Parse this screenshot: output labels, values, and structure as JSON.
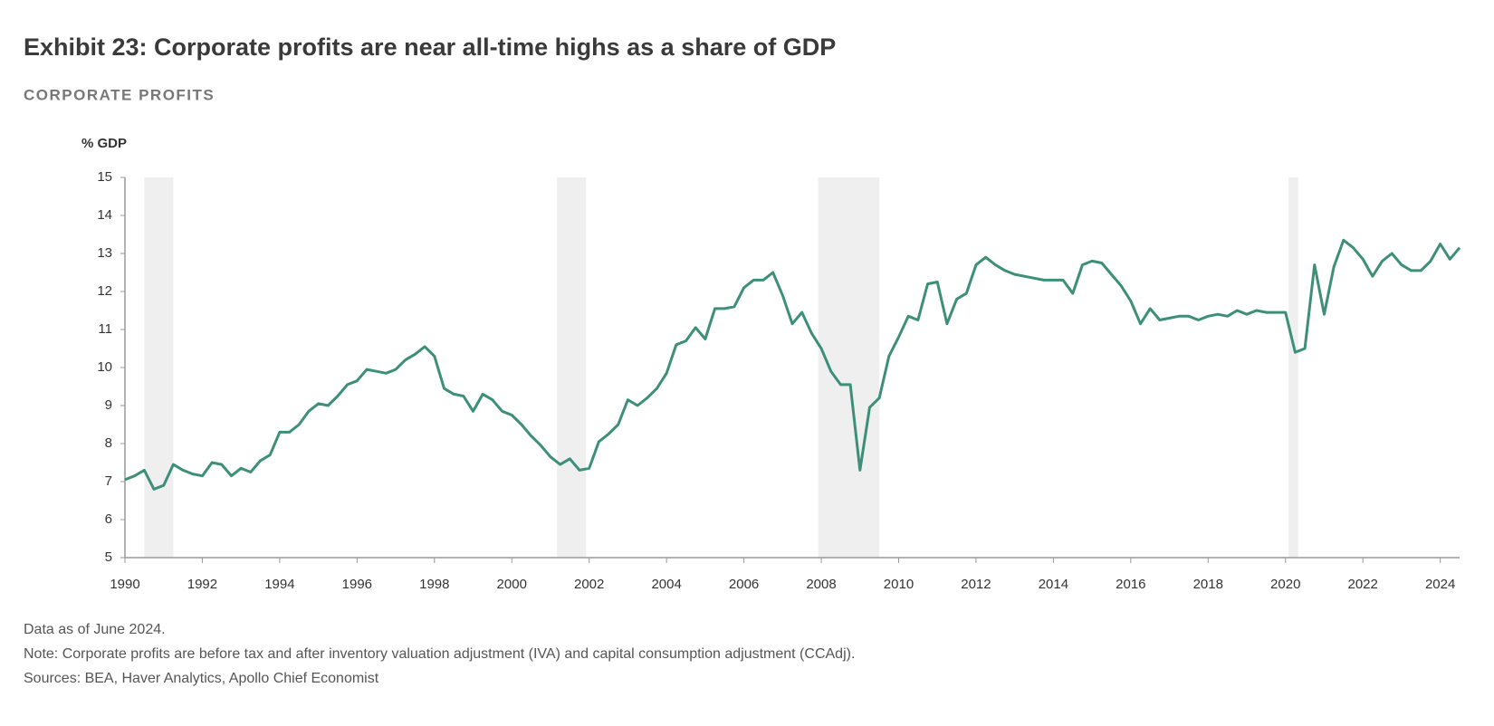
{
  "chart_data": {
    "type": "line",
    "title": "Exhibit 23: Corporate profits are near all-time highs as a share of GDP",
    "subtitle": "CORPORATE PROFITS",
    "y_label": "% GDP",
    "notes": [
      "Data as of June 2024.",
      "Note: Corporate profits are before tax and after inventory valuation adjustment (IVA) and capital consumption adjustment (CCAdj).",
      "Sources: BEA, Haver Analytics, Apollo Chief Economist"
    ],
    "xlim": [
      1990,
      2024.5
    ],
    "xticks": [
      1990,
      1992,
      1994,
      1996,
      1998,
      2000,
      2002,
      2004,
      2006,
      2008,
      2010,
      2012,
      2014,
      2016,
      2018,
      2020,
      2022,
      2024
    ],
    "ylim": [
      5,
      15
    ],
    "yticks": [
      5,
      6,
      7,
      8,
      9,
      10,
      11,
      12,
      13,
      14,
      15
    ],
    "recessions": [
      [
        1990.5,
        1991.25
      ],
      [
        2001.17,
        2001.92
      ],
      [
        2007.92,
        2009.5
      ],
      [
        2020.08,
        2020.33
      ]
    ],
    "recession_color": "#efefef",
    "x": [
      1990,
      1990.25,
      1990.5,
      1990.75,
      1991,
      1991.25,
      1991.5,
      1991.75,
      1992,
      1992.25,
      1992.5,
      1992.75,
      1993,
      1993.25,
      1993.5,
      1993.75,
      1994,
      1994.25,
      1994.5,
      1994.75,
      1995,
      1995.25,
      1995.5,
      1995.75,
      1996,
      1996.25,
      1996.5,
      1996.75,
      1997,
      1997.25,
      1997.5,
      1997.75,
      1998,
      1998.25,
      1998.5,
      1998.75,
      1999,
      1999.25,
      1999.5,
      1999.75,
      2000,
      2000.25,
      2000.5,
      2000.75,
      2001,
      2001.25,
      2001.5,
      2001.75,
      2002,
      2002.25,
      2002.5,
      2002.75,
      2003,
      2003.25,
      2003.5,
      2003.75,
      2004,
      2004.25,
      2004.5,
      2004.75,
      2005,
      2005.25,
      2005.5,
      2005.75,
      2006,
      2006.25,
      2006.5,
      2006.75,
      2007,
      2007.25,
      2007.5,
      2007.75,
      2008,
      2008.25,
      2008.5,
      2008.75,
      2009,
      2009.25,
      2009.5,
      2009.75,
      2010,
      2010.25,
      2010.5,
      2010.75,
      2011,
      2011.25,
      2011.5,
      2011.75,
      2012,
      2012.25,
      2012.5,
      2012.75,
      2013,
      2013.25,
      2013.5,
      2013.75,
      2014,
      2014.25,
      2014.5,
      2014.75,
      2015,
      2015.25,
      2015.5,
      2015.75,
      2016,
      2016.25,
      2016.5,
      2016.75,
      2017,
      2017.25,
      2017.5,
      2017.75,
      2018,
      2018.25,
      2018.5,
      2018.75,
      2019,
      2019.25,
      2019.5,
      2019.75,
      2020,
      2020.25,
      2020.5,
      2020.75,
      2021,
      2021.25,
      2021.5,
      2021.75,
      2022,
      2022.25,
      2022.5,
      2022.75,
      2023,
      2023.25,
      2023.5,
      2023.75,
      2024,
      2024.25,
      2024.5
    ],
    "series": [
      {
        "color": "#3d8f77",
        "values": [
          7.05,
          7.15,
          7.3,
          6.8,
          6.9,
          7.45,
          7.3,
          7.2,
          7.15,
          7.5,
          7.45,
          7.15,
          7.35,
          7.25,
          7.55,
          7.7,
          8.3,
          8.3,
          8.5,
          8.85,
          9.05,
          9.0,
          9.25,
          9.55,
          9.65,
          9.95,
          9.9,
          9.85,
          9.95,
          10.2,
          10.35,
          10.55,
          10.3,
          9.45,
          9.3,
          9.25,
          8.85,
          9.3,
          9.15,
          8.85,
          8.75,
          8.5,
          8.2,
          7.95,
          7.65,
          7.45,
          7.6,
          7.3,
          7.35,
          8.05,
          8.25,
          8.5,
          9.15,
          9.0,
          9.2,
          9.45,
          9.85,
          10.6,
          10.7,
          11.05,
          10.75,
          11.55,
          11.55,
          11.6,
          12.1,
          12.3,
          12.3,
          12.5,
          11.9,
          11.15,
          11.45,
          10.9,
          10.5,
          9.9,
          9.55,
          9.55,
          7.3,
          8.95,
          9.2,
          10.3,
          10.8,
          11.35,
          11.25,
          12.2,
          12.25,
          11.15,
          11.8,
          11.95,
          12.7,
          12.9,
          12.7,
          12.55,
          12.45,
          12.4,
          12.35,
          12.3,
          12.3,
          12.3,
          11.95,
          12.7,
          12.8,
          12.75,
          12.45,
          12.15,
          11.75,
          11.15,
          11.55,
          11.25,
          11.3,
          11.35,
          11.35,
          11.25,
          11.35,
          11.4,
          11.35,
          11.5,
          11.4,
          11.5,
          11.45,
          11.45,
          11.45,
          10.4,
          10.5,
          12.7,
          11.4,
          12.65,
          13.35,
          13.15,
          12.85,
          12.4,
          12.8,
          13.0,
          12.7,
          12.55,
          12.55,
          12.8,
          13.25,
          12.85,
          13.15
        ]
      }
    ]
  }
}
